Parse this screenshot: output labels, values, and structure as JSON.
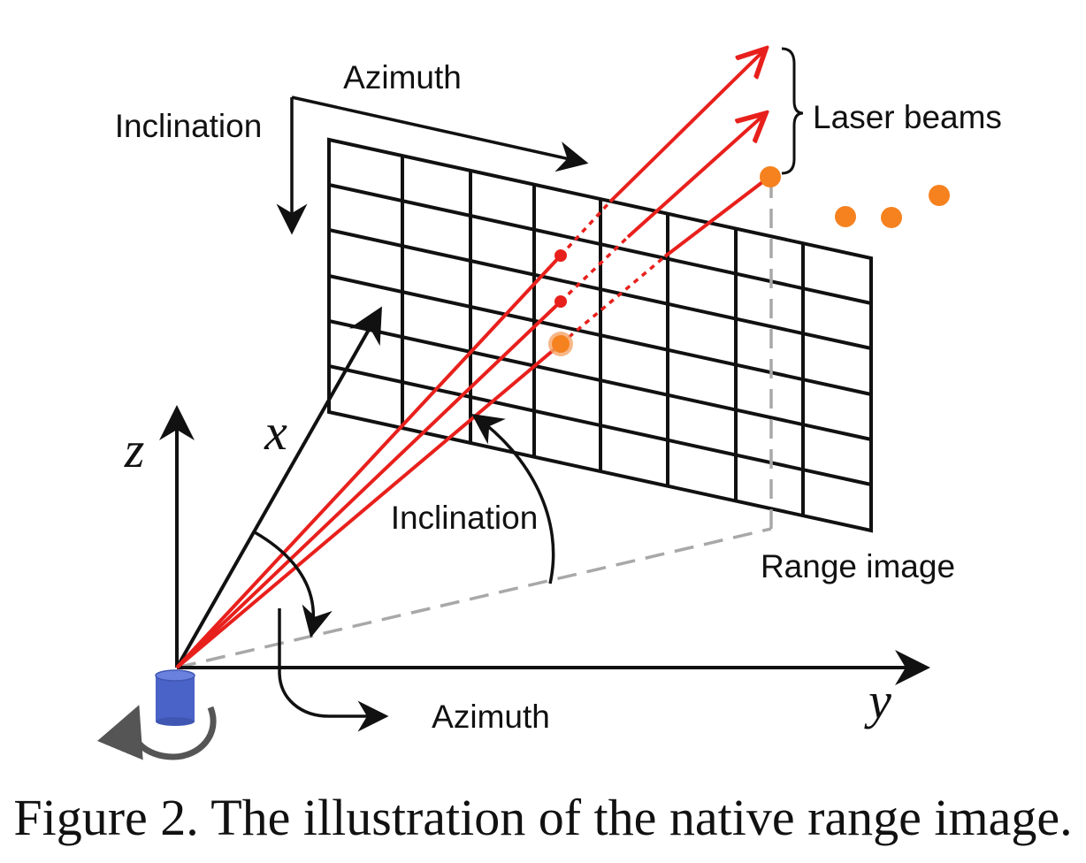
{
  "labels": {
    "azimuth_top": "Azimuth",
    "inclination_top": "Inclination",
    "laser_beams": "Laser beams",
    "inclination_mid": "Inclination",
    "range_image": "Range image",
    "azimuth_bottom": "Azimuth",
    "axis_x": "x",
    "axis_y": "y",
    "axis_z": "z"
  },
  "caption": "Figure 2. The illustration of the native range image.",
  "colors": {
    "grid": "#111111",
    "beam": "#e8201c",
    "point": "#f5821f",
    "sensor": "#4a63c8",
    "ground_dashed": "#a8a8a8",
    "rotation_arrow": "#555555"
  }
}
